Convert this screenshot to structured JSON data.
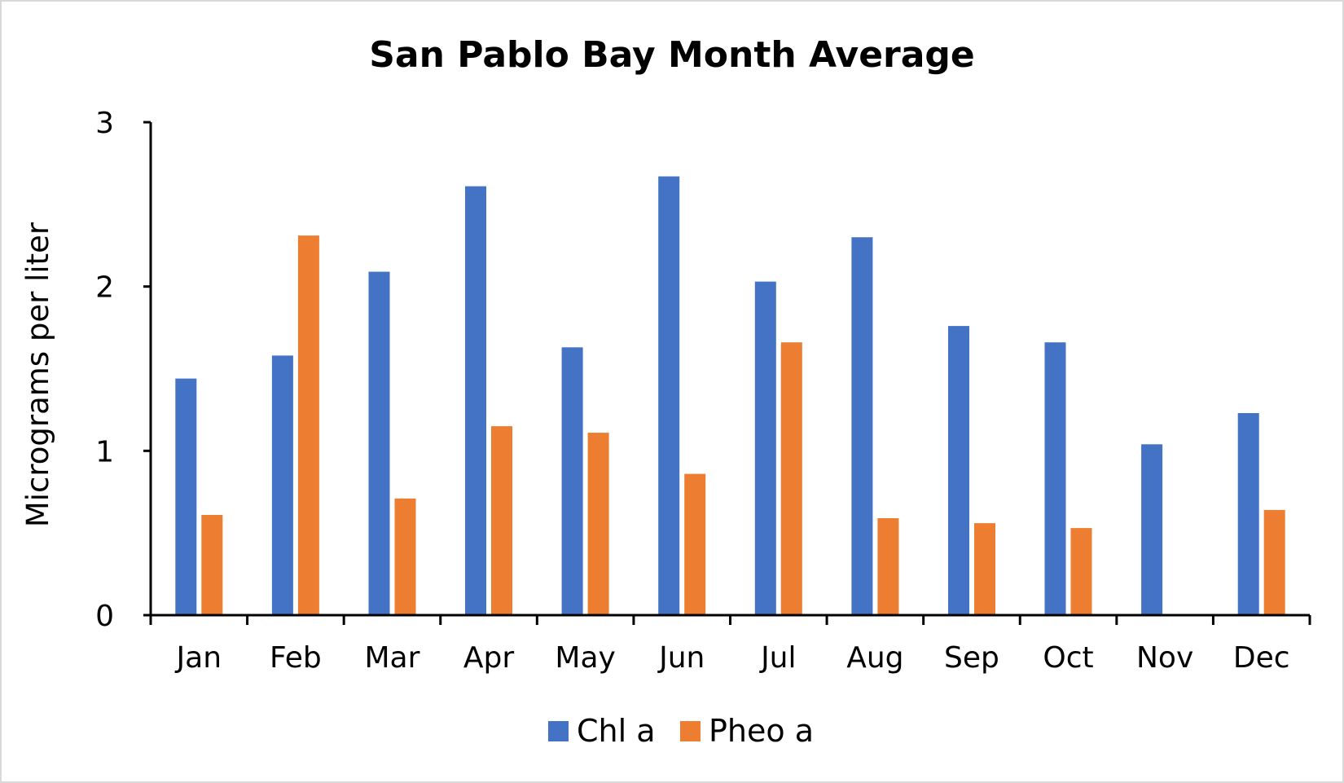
{
  "chart_data": {
    "type": "bar",
    "title": "San Pablo Bay Month Average",
    "xlabel": "",
    "ylabel": "Micrograms per liter",
    "ylim": [
      0,
      3
    ],
    "yticks": [
      "0",
      "1",
      "2",
      "3"
    ],
    "grid": false,
    "legend_position": "bottom",
    "categories": [
      "Jan",
      "Feb",
      "Mar",
      "Apr",
      "May",
      "Jun",
      "Jul",
      "Aug",
      "Sep",
      "Oct",
      "Nov",
      "Dec"
    ],
    "series": [
      {
        "name": "Chl a",
        "color": "#4472C4",
        "values": [
          1.44,
          1.58,
          2.09,
          2.61,
          1.63,
          2.67,
          2.03,
          2.3,
          1.76,
          1.66,
          1.04,
          1.23
        ]
      },
      {
        "name": "Pheo a",
        "color": "#ED7D31",
        "values": [
          0.61,
          2.31,
          0.71,
          1.15,
          1.11,
          0.86,
          1.66,
          0.59,
          0.56,
          0.53,
          0,
          0.64
        ]
      }
    ]
  }
}
